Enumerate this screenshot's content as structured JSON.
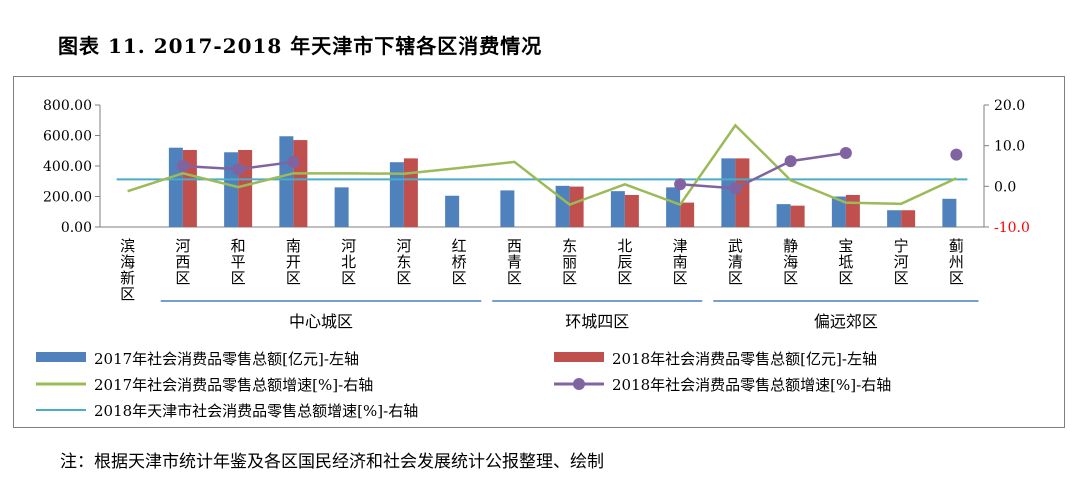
{
  "figure_title": "图表 11. 2017-2018 年天津市下辖各区消费情况",
  "note": "注：根据天津市统计年鉴及各区国民经济和社会发展统计公报整理、绘制",
  "chart_data": {
    "type": "bar",
    "categories": [
      "滨海新区",
      "河西区",
      "和平区",
      "南开区",
      "河北区",
      "河东区",
      "红桥区",
      "西青区",
      "东丽区",
      "北辰区",
      "津南区",
      "武清区",
      "静海区",
      "宝坻区",
      "宁河区",
      "蓟州区"
    ],
    "groups": [
      {
        "label": "中心城区",
        "from": 1,
        "to": 6
      },
      {
        "label": "环城四区",
        "from": 7,
        "to": 10
      },
      {
        "label": "偏远郊区",
        "from": 11,
        "to": 15
      }
    ],
    "series": [
      {
        "name": "2017年社会消费品零售总额[亿元]-左轴",
        "type": "bar",
        "axis": "left",
        "color": "#4f81bd",
        "values": [
          null,
          520,
          490,
          595,
          260,
          425,
          205,
          240,
          270,
          235,
          260,
          450,
          150,
          200,
          110,
          185
        ]
      },
      {
        "name": "2018年社会消费品零售总额[亿元]-左轴",
        "type": "bar",
        "axis": "left",
        "color": "#c0504d",
        "values": [
          null,
          505,
          505,
          570,
          null,
          450,
          null,
          null,
          265,
          210,
          160,
          450,
          140,
          210,
          110,
          null
        ]
      },
      {
        "name": "2017年社会消费品零售总额增速[%]-右轴",
        "type": "line",
        "axis": "right",
        "color": "#9bbb59",
        "values": [
          -1.2,
          3.2,
          -0.2,
          3.2,
          3.2,
          3.1,
          4.5,
          6.0,
          -4.5,
          0.5,
          -4.5,
          15.0,
          1.5,
          -4.0,
          -4.3,
          2.0
        ]
      },
      {
        "name": "2018年社会消费品零售总额增速[%]-右轴",
        "type": "line-marker",
        "axis": "right",
        "color": "#8064a2",
        "values": [
          null,
          5.0,
          4.2,
          6.0,
          null,
          null,
          null,
          null,
          null,
          null,
          0.5,
          -0.5,
          6.2,
          8.2,
          null,
          7.8
        ]
      },
      {
        "name": "2018年天津市社会消费品零售总额增速[%]-右轴",
        "type": "hline",
        "axis": "right",
        "color": "#4bacc6",
        "value": 1.7
      }
    ],
    "left_axis": {
      "min": 0,
      "max": 800,
      "ticks": [
        "0.00",
        "200.00",
        "400.00",
        "600.00",
        "800.00"
      ]
    },
    "right_axis": {
      "min": -10,
      "max": 20,
      "ticks": [
        "-10.0",
        "0.0",
        "10.0",
        "20.0"
      ],
      "negative_color": "#ff0000"
    },
    "grid": false,
    "legend_position": "bottom"
  }
}
